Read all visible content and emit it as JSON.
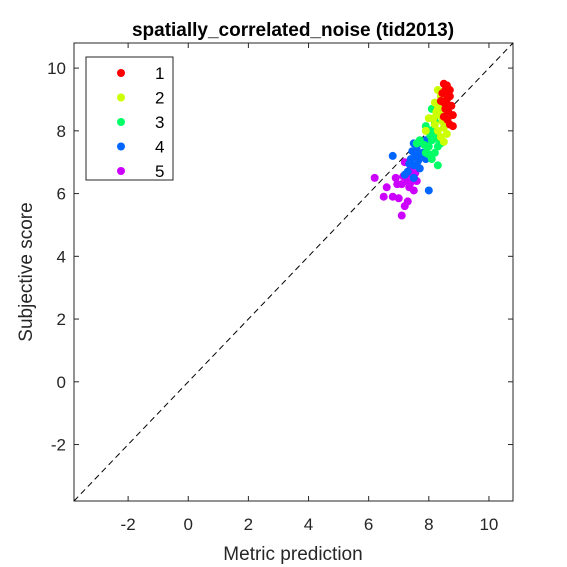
{
  "chart_data": {
    "type": "scatter",
    "title": "spatially_correlated_noise (tid2013)",
    "xlabel": "Metric prediction",
    "ylabel": "Subjective score",
    "xlim": [
      -3.8,
      10.8
    ],
    "ylim": [
      -3.8,
      10.8
    ],
    "xticks": [
      -2,
      0,
      2,
      4,
      6,
      8,
      10
    ],
    "yticks": [
      -2,
      0,
      2,
      4,
      6,
      8,
      10
    ],
    "xtick_labels": [
      "-2",
      "0",
      "2",
      "4",
      "6",
      "8",
      "10"
    ],
    "ytick_labels": [
      "-2",
      "0",
      "2",
      "4",
      "6",
      "8",
      "10"
    ],
    "grid": false,
    "legend_position": "top-left",
    "reference_line": "y = x (dashed)",
    "series": [
      {
        "name": "1",
        "color": "#ff0000",
        "points": [
          [
            8.5,
            9.5
          ],
          [
            8.6,
            9.45
          ],
          [
            8.55,
            9.3
          ],
          [
            8.65,
            9.2
          ],
          [
            8.7,
            9.1
          ],
          [
            8.6,
            9.0
          ],
          [
            8.75,
            8.8
          ],
          [
            8.5,
            8.9
          ],
          [
            8.65,
            8.6
          ],
          [
            8.8,
            8.5
          ],
          [
            8.7,
            8.2
          ],
          [
            8.45,
            9.2
          ],
          [
            8.55,
            8.7
          ],
          [
            8.6,
            9.4
          ],
          [
            8.4,
            8.95
          ],
          [
            8.8,
            8.15
          ],
          [
            8.7,
            9.3
          ],
          [
            8.5,
            8.45
          ],
          [
            8.62,
            8.35
          ],
          [
            8.58,
            8.85
          ]
        ]
      },
      {
        "name": "2",
        "color": "#ccff00",
        "points": [
          [
            8.3,
            9.3
          ],
          [
            8.4,
            9.1
          ],
          [
            8.2,
            8.9
          ],
          [
            8.5,
            8.7
          ],
          [
            8.35,
            8.5
          ],
          [
            8.25,
            8.6
          ],
          [
            8.45,
            8.3
          ],
          [
            8.15,
            8.4
          ],
          [
            8.5,
            8.1
          ],
          [
            8.3,
            8.0
          ],
          [
            8.6,
            7.9
          ],
          [
            8.4,
            7.8
          ],
          [
            8.0,
            8.4
          ],
          [
            8.35,
            8.85
          ],
          [
            8.55,
            8.25
          ],
          [
            8.2,
            8.2
          ],
          [
            8.45,
            9.0
          ],
          [
            7.9,
            8.0
          ],
          [
            8.5,
            7.65
          ],
          [
            8.3,
            8.7
          ]
        ]
      },
      {
        "name": "3",
        "color": "#00ff66",
        "points": [
          [
            8.1,
            8.7
          ],
          [
            8.2,
            8.3
          ],
          [
            8.0,
            8.0
          ],
          [
            8.25,
            7.9
          ],
          [
            7.9,
            8.15
          ],
          [
            8.1,
            7.7
          ],
          [
            8.3,
            7.5
          ],
          [
            7.7,
            7.7
          ],
          [
            8.0,
            7.5
          ],
          [
            8.2,
            7.3
          ],
          [
            7.9,
            7.3
          ],
          [
            8.1,
            7.1
          ],
          [
            8.3,
            6.9
          ],
          [
            8.4,
            7.6
          ],
          [
            8.05,
            7.85
          ],
          [
            7.6,
            7.6
          ],
          [
            8.15,
            8.05
          ],
          [
            7.85,
            7.55
          ],
          [
            8.25,
            7.75
          ],
          [
            8.0,
            7.25
          ]
        ]
      },
      {
        "name": "4",
        "color": "#0066ff",
        "points": [
          [
            7.9,
            7.7
          ],
          [
            7.7,
            7.6
          ],
          [
            7.5,
            7.6
          ],
          [
            7.6,
            7.4
          ],
          [
            7.8,
            7.3
          ],
          [
            7.55,
            7.2
          ],
          [
            7.4,
            7.1
          ],
          [
            7.65,
            7.05
          ],
          [
            7.9,
            7.1
          ],
          [
            7.5,
            6.9
          ],
          [
            7.7,
            6.8
          ],
          [
            7.3,
            6.7
          ],
          [
            7.2,
            6.6
          ],
          [
            7.5,
            6.5
          ],
          [
            6.8,
            7.2
          ],
          [
            8.0,
            6.1
          ],
          [
            7.6,
            6.9
          ],
          [
            7.45,
            7.35
          ],
          [
            7.35,
            6.95
          ],
          [
            7.75,
            7.2
          ]
        ]
      },
      {
        "name": "5",
        "color": "#cc00ff",
        "points": [
          [
            7.2,
            7.0
          ],
          [
            7.4,
            6.8
          ],
          [
            7.3,
            6.6
          ],
          [
            7.5,
            6.5
          ],
          [
            7.6,
            6.4
          ],
          [
            7.25,
            6.4
          ],
          [
            7.1,
            6.3
          ],
          [
            7.35,
            6.2
          ],
          [
            7.5,
            6.1
          ],
          [
            6.9,
            6.5
          ],
          [
            6.95,
            6.3
          ],
          [
            6.2,
            6.5
          ],
          [
            6.6,
            6.2
          ],
          [
            6.8,
            5.9
          ],
          [
            7.0,
            5.85
          ],
          [
            6.5,
            5.9
          ],
          [
            7.3,
            5.75
          ],
          [
            7.2,
            5.6
          ],
          [
            7.1,
            5.3
          ],
          [
            7.4,
            6.35
          ],
          [
            7.55,
            6.65
          ],
          [
            7.15,
            6.55
          ]
        ]
      }
    ]
  }
}
